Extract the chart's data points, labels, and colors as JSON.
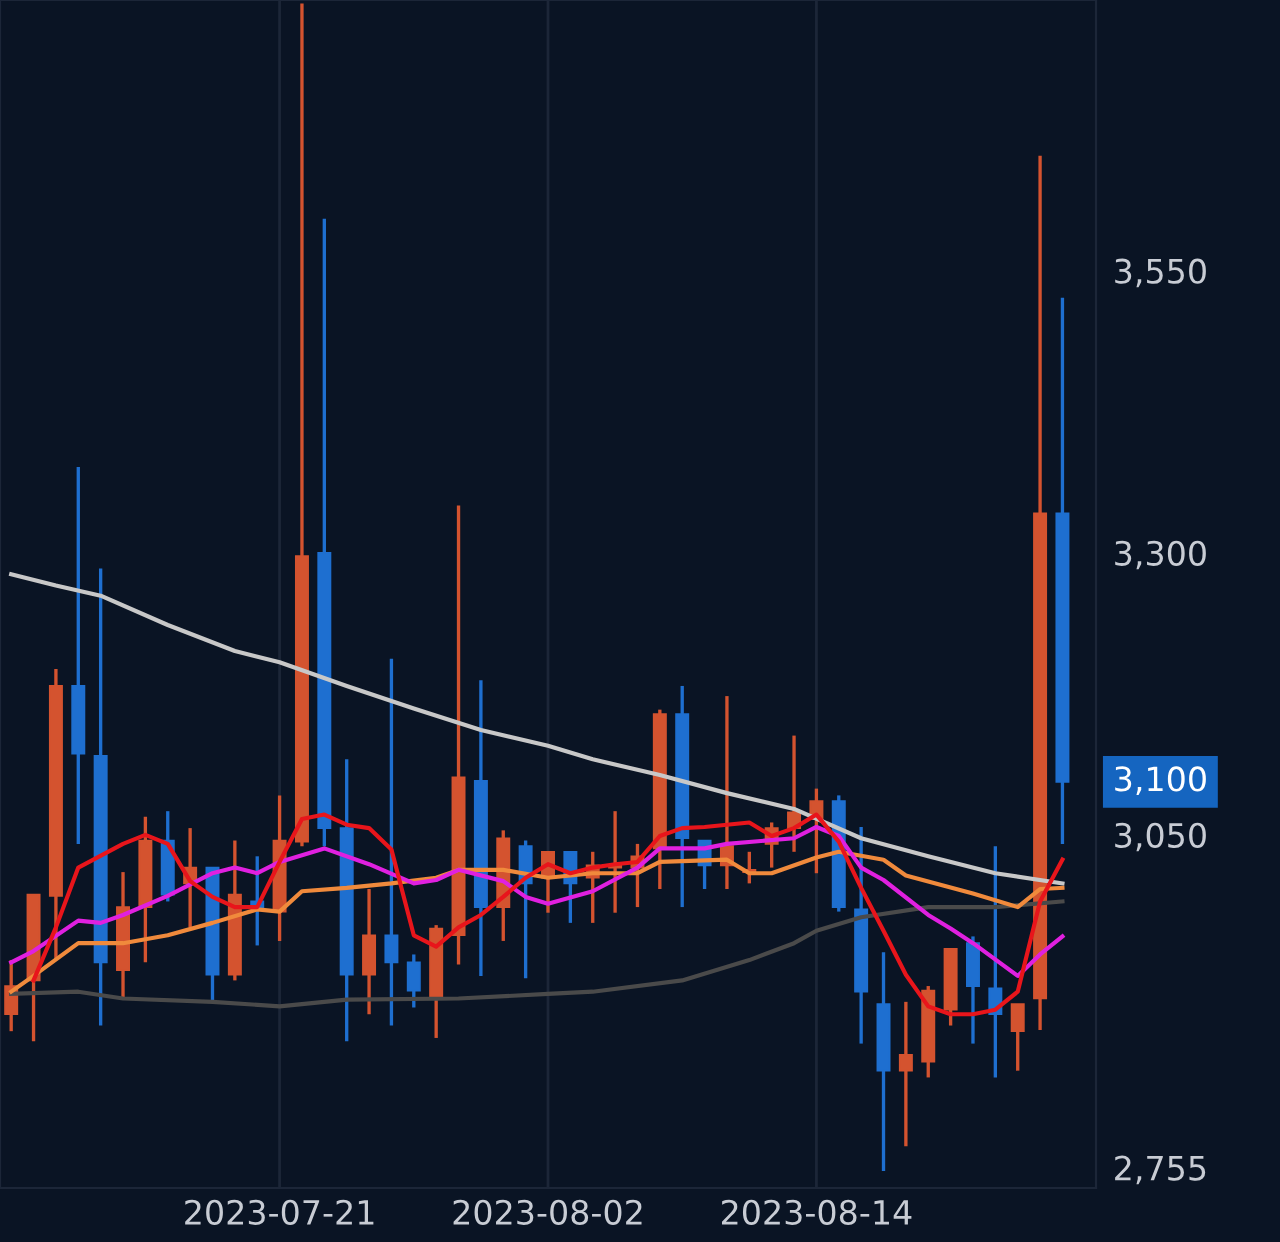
{
  "chart_data": {
    "type": "candlestick",
    "x": [
      "2023-07-09",
      "2023-07-10",
      "2023-07-11",
      "2023-07-12",
      "2023-07-13",
      "2023-07-14",
      "2023-07-15",
      "2023-07-16",
      "2023-07-17",
      "2023-07-18",
      "2023-07-19",
      "2023-07-20",
      "2023-07-21",
      "2023-07-22",
      "2023-07-23",
      "2023-07-24",
      "2023-07-25",
      "2023-07-26",
      "2023-07-27",
      "2023-07-28",
      "2023-07-29",
      "2023-07-30",
      "2023-07-31",
      "2023-08-01",
      "2023-08-02",
      "2023-08-03",
      "2023-08-04",
      "2023-08-05",
      "2023-08-06",
      "2023-08-07",
      "2023-08-08",
      "2023-08-09",
      "2023-08-10",
      "2023-08-11",
      "2023-08-12",
      "2023-08-13",
      "2023-08-14",
      "2023-08-15",
      "2023-08-16",
      "2023-08-17",
      "2023-08-18",
      "2023-08-19",
      "2023-08-20",
      "2023-08-21",
      "2023-08-22",
      "2023-08-23",
      "2023-08-24",
      "2023-08-25"
    ],
    "ohlc": [
      [
        2894,
        2942,
        2879,
        2919
      ],
      [
        2924,
        3000,
        2870,
        3000
      ],
      [
        2999,
        3200,
        2942,
        3185
      ],
      [
        3185,
        3379,
        3045,
        3125
      ],
      [
        3123,
        3289,
        2884,
        2940
      ],
      [
        2933,
        3020,
        2907,
        2989
      ],
      [
        2989,
        3069,
        2940,
        3048
      ],
      [
        3048,
        3074,
        2994,
        3000
      ],
      [
        3010,
        3059,
        2971,
        3024
      ],
      [
        3024,
        3024,
        2905,
        2929
      ],
      [
        2929,
        3048,
        2924,
        3000
      ],
      [
        2994,
        3034,
        2955,
        2989
      ],
      [
        2985,
        3088,
        2959,
        3048
      ],
      [
        3047,
        3790,
        3043,
        3300
      ],
      [
        3303,
        3599,
        3043,
        3059
      ],
      [
        3059,
        3120,
        2870,
        2929
      ],
      [
        2929,
        3005,
        2894,
        2964
      ],
      [
        2964,
        3209,
        2884,
        2940
      ],
      [
        2940,
        2947,
        2900,
        2915
      ],
      [
        2910,
        2973,
        2873,
        2970
      ],
      [
        2964,
        3345,
        2938,
        3104
      ],
      [
        3101,
        3190,
        2928,
        2989
      ],
      [
        2989,
        3057,
        2959,
        3050
      ],
      [
        3043,
        3048,
        2926,
        3010
      ],
      [
        3015,
        3038,
        2984,
        3038
      ],
      [
        3038,
        3038,
        2975,
        3010
      ],
      [
        3015,
        3038,
        2975,
        3026
      ],
      [
        3024,
        3074,
        2984,
        3026
      ],
      [
        3024,
        3045,
        2989,
        3034
      ],
      [
        3041,
        3164,
        3005,
        3160
      ],
      [
        3160,
        3185,
        2989,
        3050
      ],
      [
        3048,
        3048,
        3005,
        3026
      ],
      [
        3026,
        3176,
        3005,
        3043
      ],
      [
        3020,
        3038,
        3010,
        3022
      ],
      [
        3045,
        3064,
        3024,
        3059
      ],
      [
        3059,
        3141,
        3038,
        3073
      ],
      [
        3067,
        3094,
        3019,
        3083
      ],
      [
        3083,
        3088,
        2985,
        2989
      ],
      [
        2987,
        3060,
        2868,
        2914
      ],
      [
        2903,
        2949,
        2755,
        2844
      ],
      [
        2844,
        2905,
        2777,
        2858
      ],
      [
        2852,
        2919,
        2838,
        2915
      ],
      [
        2898,
        2952,
        2884,
        2952
      ],
      [
        2957,
        2963,
        2868,
        2919
      ],
      [
        2917,
        3043,
        2838,
        2894
      ],
      [
        2879,
        2903,
        2844,
        2903
      ],
      [
        2908,
        3655,
        2880,
        3338
      ],
      [
        3338,
        3529,
        3045,
        3100
      ]
    ],
    "colors": [
      "#d4532f",
      "#d4532f",
      "#d4532f",
      "#1e6fd0",
      "#1e6fd0",
      "#d4532f",
      "#d4532f",
      "#1e6fd0",
      "#d4532f",
      "#1e6fd0",
      "#d4532f",
      "#1e6fd0",
      "#d4532f",
      "#d4532f",
      "#1e6fd0",
      "#1e6fd0",
      "#d4532f",
      "#1e6fd0",
      "#1e6fd0",
      "#d4532f",
      "#d4532f",
      "#1e6fd0",
      "#d4532f",
      "#1e6fd0",
      "#d4532f",
      "#1e6fd0",
      "#d4532f",
      "#d4532f",
      "#d4532f",
      "#d4532f",
      "#1e6fd0",
      "#1e6fd0",
      "#d4532f",
      "#d4532f",
      "#d4532f",
      "#d4532f",
      "#d4532f",
      "#1e6fd0",
      "#1e6fd0",
      "#1e6fd0",
      "#d4532f",
      "#d4532f",
      "#d4532f",
      "#1e6fd0",
      "#1e6fd0",
      "#d4532f",
      "#d4532f",
      "#1e6fd0"
    ],
    "series": [
      {
        "type": "line",
        "color": "#c8c8c8",
        "x": [
          "2023-07-09",
          "2023-07-11",
          "2023-07-13",
          "2023-07-16",
          "2023-07-19",
          "2023-07-21",
          "2023-07-24",
          "2023-07-27",
          "2023-07-30",
          "2023-08-02",
          "2023-08-04",
          "2023-08-07",
          "2023-08-10",
          "2023-08-13",
          "2023-08-16",
          "2023-08-19",
          "2023-08-22",
          "2023-08-25"
        ],
        "values": [
          3284,
          3274,
          3265,
          3239,
          3216,
          3206,
          3185,
          3165,
          3146,
          3132,
          3120,
          3106,
          3090,
          3076,
          3050,
          3034,
          3019,
          3010
        ]
      },
      {
        "type": "line",
        "color": "#4a4a4a",
        "x": [
          "2023-07-09",
          "2023-07-12",
          "2023-07-14",
          "2023-07-18",
          "2023-07-21",
          "2023-07-24",
          "2023-07-29",
          "2023-08-02",
          "2023-08-04",
          "2023-08-08",
          "2023-08-11",
          "2023-08-13",
          "2023-08-14",
          "2023-08-16",
          "2023-08-19",
          "2023-08-22",
          "2023-08-25"
        ],
        "values": [
          2912,
          2914,
          2908,
          2905,
          2901,
          2907,
          2908,
          2912,
          2914,
          2924,
          2942,
          2957,
          2968,
          2980,
          2989,
          2989,
          2994
        ]
      },
      {
        "type": "line",
        "color": "#f08a3c",
        "x": [
          "2023-07-09",
          "2023-07-10",
          "2023-07-12",
          "2023-07-13",
          "2023-07-14",
          "2023-07-16",
          "2023-07-18",
          "2023-07-20",
          "2023-07-21",
          "2023-07-22",
          "2023-07-24",
          "2023-07-26",
          "2023-07-28",
          "2023-07-29",
          "2023-07-31",
          "2023-08-02",
          "2023-08-04",
          "2023-08-06",
          "2023-08-07",
          "2023-08-10",
          "2023-08-11",
          "2023-08-12",
          "2023-08-14",
          "2023-08-15",
          "2023-08-17",
          "2023-08-18",
          "2023-08-21",
          "2023-08-23",
          "2023-08-24",
          "2023-08-25"
        ],
        "values": [
          2914,
          2928,
          2957,
          2957,
          2957,
          2964,
          2975,
          2987,
          2985,
          3003,
          3006,
          3010,
          3015,
          3022,
          3022,
          3015,
          3019,
          3019,
          3029,
          3031,
          3019,
          3019,
          3033,
          3038,
          3031,
          3017,
          3001,
          2989,
          3005,
          3006
        ]
      },
      {
        "type": "line",
        "color": "#e020e0",
        "x": [
          "2023-07-09",
          "2023-07-10",
          "2023-07-12",
          "2023-07-13",
          "2023-07-14",
          "2023-07-16",
          "2023-07-18",
          "2023-07-19",
          "2023-07-20",
          "2023-07-21",
          "2023-07-23",
          "2023-07-25",
          "2023-07-27",
          "2023-07-28",
          "2023-07-29",
          "2023-07-31",
          "2023-08-01",
          "2023-08-02",
          "2023-08-04",
          "2023-08-06",
          "2023-08-07",
          "2023-08-09",
          "2023-08-10",
          "2023-08-13",
          "2023-08-14",
          "2023-08-15",
          "2023-08-16",
          "2023-08-17",
          "2023-08-19",
          "2023-08-20",
          "2023-08-21",
          "2023-08-23",
          "2023-08-24",
          "2023-08-25"
        ],
        "values": [
          2940,
          2950,
          2977,
          2975,
          2982,
          2999,
          3019,
          3024,
          3019,
          3029,
          3041,
          3027,
          3010,
          3013,
          3022,
          3012,
          2998,
          2992,
          3003,
          3024,
          3041,
          3041,
          3045,
          3050,
          3060,
          3052,
          3024,
          3013,
          2982,
          2970,
          2957,
          2928,
          2947,
          2963
        ]
      },
      {
        "type": "line",
        "color": "#e8151b",
        "x": [
          "2023-07-10",
          "2023-07-11",
          "2023-07-12",
          "2023-07-14",
          "2023-07-15",
          "2023-07-16",
          "2023-07-17",
          "2023-07-18",
          "2023-07-19",
          "2023-07-20",
          "2023-07-21",
          "2023-07-22",
          "2023-07-23",
          "2023-07-24",
          "2023-07-25",
          "2023-07-26",
          "2023-07-27",
          "2023-07-28",
          "2023-07-29",
          "2023-07-30",
          "2023-07-31",
          "2023-08-01",
          "2023-08-02",
          "2023-08-03",
          "2023-08-04",
          "2023-08-05",
          "2023-08-06",
          "2023-08-07",
          "2023-08-08",
          "2023-08-09",
          "2023-08-10",
          "2023-08-11",
          "2023-08-12",
          "2023-08-13",
          "2023-08-14",
          "2023-08-15",
          "2023-08-16",
          "2023-08-17",
          "2023-08-18",
          "2023-08-19",
          "2023-08-20",
          "2023-08-21",
          "2023-08-22",
          "2023-08-23",
          "2023-08-24",
          "2023-08-25"
        ],
        "values": [
          2924,
          2971,
          3024,
          3045,
          3053,
          3045,
          3012,
          2998,
          2989,
          2989,
          3029,
          3067,
          3071,
          3062,
          3059,
          3040,
          2964,
          2954,
          2971,
          2982,
          2998,
          3015,
          3027,
          3019,
          3024,
          3027,
          3029,
          3052,
          3059,
          3060,
          3062,
          3064,
          3052,
          3059,
          3071,
          3047,
          3006,
          2968,
          2929,
          2901,
          2894,
          2894,
          2898,
          2914,
          2994,
          3031
        ]
      }
    ],
    "ylim": [
      2740,
      3793
    ],
    "yticks": [
      {
        "value": 3550,
        "label": "3,550"
      },
      {
        "value": 3300,
        "label": "3,300"
      },
      {
        "value": 3050,
        "label": "3,050"
      },
      {
        "value": 2755,
        "label": "2,755"
      }
    ],
    "xlim": [
      "2023-07-08T12:00",
      "2023-08-26T12:00"
    ],
    "xticks": [
      "2023-07-21",
      "2023-08-02",
      "2023-08-14"
    ],
    "annotations": [
      "3,100"
    ],
    "grid": "x"
  }
}
